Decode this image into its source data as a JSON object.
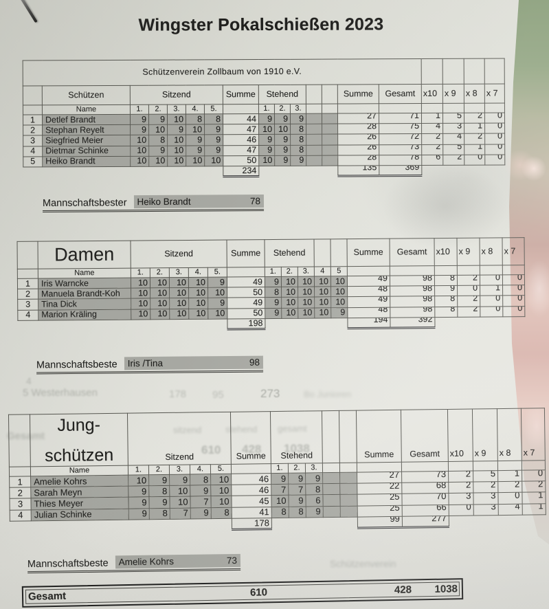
{
  "title": "Wingster Pokalschießen 2023",
  "club": "Schützenverein Zollbaum von 1910 e.V.",
  "labels": {
    "name": "Name",
    "sitzend": "Sitzend",
    "stehend": "Stehend",
    "summe": "Summe",
    "gesamt": "Gesamt",
    "x10": "x10",
    "x9": "x 9",
    "x8": "x 8",
    "x7": "x 7",
    "sitzend_cols": [
      "1.",
      "2.",
      "3.",
      "4.",
      "5."
    ]
  },
  "sections": [
    {
      "title_lines": [
        "Schützen"
      ],
      "stehend_cols": [
        "1.",
        "2.",
        "3.",
        "",
        ""
      ],
      "rows": [
        {
          "rank": "1",
          "name": "Detlef Brandt",
          "sitzend": [
            "9",
            "9",
            "10",
            "8",
            "8"
          ],
          "summe_sitzend": "44",
          "stehend": [
            "9",
            "9",
            "9",
            "",
            ""
          ],
          "summe_stehend": "27",
          "gesamt": "71",
          "x10": "1",
          "x9": "5",
          "x8": "2",
          "x7": "0"
        },
        {
          "rank": "2",
          "name": "Stephan Reyelt",
          "sitzend": [
            "9",
            "10",
            "9",
            "10",
            "9"
          ],
          "summe_sitzend": "47",
          "stehend": [
            "10",
            "10",
            "8",
            "",
            ""
          ],
          "summe_stehend": "28",
          "gesamt": "75",
          "x10": "4",
          "x9": "3",
          "x8": "1",
          "x7": "0"
        },
        {
          "rank": "3",
          "name": "Siegfried Meier",
          "sitzend": [
            "10",
            "8",
            "10",
            "9",
            "9"
          ],
          "summe_sitzend": "46",
          "stehend": [
            "9",
            "9",
            "8",
            "",
            ""
          ],
          "summe_stehend": "26",
          "gesamt": "72",
          "x10": "2",
          "x9": "4",
          "x8": "2",
          "x7": "0"
        },
        {
          "rank": "4",
          "name": "Dietmar Schinke",
          "sitzend": [
            "10",
            "9",
            "10",
            "9",
            "9"
          ],
          "summe_sitzend": "47",
          "stehend": [
            "9",
            "9",
            "8",
            "",
            ""
          ],
          "summe_stehend": "26",
          "gesamt": "73",
          "x10": "2",
          "x9": "5",
          "x8": "1",
          "x7": "0"
        },
        {
          "rank": "5",
          "name": "Heiko Brandt",
          "sitzend": [
            "10",
            "10",
            "10",
            "10",
            "10"
          ],
          "summe_sitzend": "50",
          "stehend": [
            "10",
            "9",
            "9",
            "",
            ""
          ],
          "summe_stehend": "28",
          "gesamt": "78",
          "x10": "6",
          "x9": "2",
          "x8": "0",
          "x7": "0"
        }
      ],
      "totals": {
        "sitzend": "234",
        "stehend": "135",
        "gesamt": "369"
      },
      "best": {
        "label": "Mannschaftsbester",
        "name": "Heiko Brandt",
        "score": "78"
      }
    },
    {
      "title_lines": [
        "Damen"
      ],
      "stehend_cols": [
        "1.",
        "2.",
        "3.",
        "4",
        "5"
      ],
      "rows": [
        {
          "rank": "1",
          "name": "Iris Warncke",
          "sitzend": [
            "10",
            "10",
            "10",
            "10",
            "9"
          ],
          "summe_sitzend": "49",
          "stehend": [
            "9",
            "10",
            "10",
            "10",
            "10"
          ],
          "summe_stehend": "49",
          "gesamt": "98",
          "x10": "8",
          "x9": "2",
          "x8": "0",
          "x7": "0"
        },
        {
          "rank": "2",
          "name": "Manuela Brandt-Koh",
          "sitzend": [
            "10",
            "10",
            "10",
            "10",
            "10"
          ],
          "summe_sitzend": "50",
          "stehend": [
            "8",
            "10",
            "10",
            "10",
            "10"
          ],
          "summe_stehend": "48",
          "gesamt": "98",
          "x10": "9",
          "x9": "0",
          "x8": "1",
          "x7": "0"
        },
        {
          "rank": "3",
          "name": "Tina Dick",
          "sitzend": [
            "10",
            "10",
            "10",
            "10",
            "9"
          ],
          "summe_sitzend": "49",
          "stehend": [
            "9",
            "10",
            "10",
            "10",
            "10"
          ],
          "summe_stehend": "49",
          "gesamt": "98",
          "x10": "8",
          "x9": "2",
          "x8": "0",
          "x7": "0"
        },
        {
          "rank": "4",
          "name": "Marion Kräling",
          "sitzend": [
            "10",
            "10",
            "10",
            "10",
            "10"
          ],
          "summe_sitzend": "50",
          "stehend": [
            "9",
            "10",
            "10",
            "10",
            "9"
          ],
          "summe_stehend": "48",
          "gesamt": "98",
          "x10": "8",
          "x9": "2",
          "x8": "0",
          "x7": "0"
        }
      ],
      "totals": {
        "sitzend": "198",
        "stehend": "194",
        "gesamt": "392"
      },
      "best": {
        "label": "Mannschaftsbeste",
        "name": "Iris /Tina",
        "score": "98"
      }
    },
    {
      "title_lines": [
        "Jung-",
        "schützen"
      ],
      "stehend_cols": [
        "1.",
        "2.",
        "3.",
        "",
        ""
      ],
      "rows": [
        {
          "rank": "1",
          "name": "Amelie Kohrs",
          "sitzend": [
            "10",
            "9",
            "9",
            "8",
            "10"
          ],
          "summe_sitzend": "46",
          "stehend": [
            "9",
            "9",
            "9",
            "",
            ""
          ],
          "summe_stehend": "27",
          "gesamt": "73",
          "x10": "2",
          "x9": "5",
          "x8": "1",
          "x7": "0"
        },
        {
          "rank": "2",
          "name": "Sarah Meyn",
          "sitzend": [
            "9",
            "8",
            "10",
            "9",
            "10"
          ],
          "summe_sitzend": "46",
          "stehend": [
            "7",
            "7",
            "8",
            "",
            ""
          ],
          "summe_stehend": "22",
          "gesamt": "68",
          "x10": "2",
          "x9": "2",
          "x8": "2",
          "x7": "2"
        },
        {
          "rank": "3",
          "name": "Thies Meyer",
          "sitzend": [
            "9",
            "9",
            "10",
            "7",
            "10"
          ],
          "summe_sitzend": "45",
          "stehend": [
            "10",
            "9",
            "6",
            "",
            ""
          ],
          "summe_stehend": "25",
          "gesamt": "70",
          "x10": "3",
          "x9": "3",
          "x8": "0",
          "x7": "1"
        },
        {
          "rank": "4",
          "name": "Julian Schinke",
          "sitzend": [
            "9",
            "8",
            "7",
            "9",
            "8"
          ],
          "summe_sitzend": "41",
          "stehend": [
            "8",
            "8",
            "9",
            "",
            ""
          ],
          "summe_stehend": "25",
          "gesamt": "66",
          "x10": "0",
          "x9": "3",
          "x8": "4",
          "x7": "1"
        }
      ],
      "totals": {
        "sitzend": "178",
        "stehend": "99",
        "gesamt": "277"
      },
      "best": {
        "label": "Mannschaftsbeste",
        "name": "Amelie Kohrs",
        "score": "73"
      }
    }
  ],
  "grand_total": {
    "label": "Gesamt",
    "sitzend": "610",
    "stehend": "428",
    "gesamt": "1038"
  },
  "ghosts": [
    "4",
    "5 Westerhausen",
    "178",
    "95",
    "273",
    "Bo Junioren",
    "sitzend",
    "stehend",
    "gesamt",
    "610",
    "428",
    "1038",
    "Gesamt",
    "Schützenverein"
  ]
}
